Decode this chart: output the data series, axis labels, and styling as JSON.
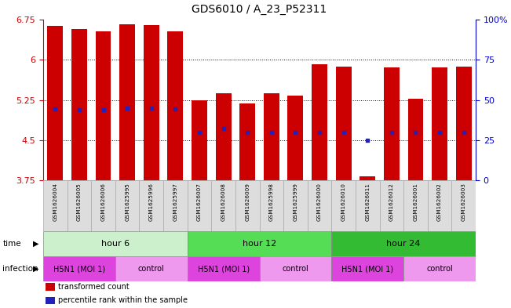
{
  "title": "GDS6010 / A_23_P52311",
  "samples": [
    "GSM1626004",
    "GSM1626005",
    "GSM1626006",
    "GSM1625995",
    "GSM1625996",
    "GSM1625997",
    "GSM1626007",
    "GSM1626008",
    "GSM1626009",
    "GSM1625998",
    "GSM1625999",
    "GSM1626000",
    "GSM1626010",
    "GSM1626011",
    "GSM1626012",
    "GSM1626001",
    "GSM1626002",
    "GSM1626003"
  ],
  "bar_tops": [
    6.63,
    6.57,
    6.53,
    6.66,
    6.65,
    6.53,
    5.25,
    5.38,
    5.18,
    5.37,
    5.33,
    5.91,
    5.87,
    3.82,
    5.86,
    5.27,
    5.86,
    5.87
  ],
  "bar_bottoms": [
    3.75,
    3.75,
    3.75,
    3.75,
    3.75,
    3.75,
    3.75,
    3.75,
    3.75,
    3.75,
    3.75,
    3.75,
    3.75,
    3.75,
    3.75,
    3.75,
    3.75,
    3.75
  ],
  "blue_marks_y": [
    5.08,
    5.07,
    5.07,
    5.1,
    5.09,
    5.08,
    4.65,
    4.72,
    4.65,
    4.65,
    4.65,
    4.65,
    4.65,
    4.5,
    4.65,
    4.65,
    4.65,
    4.65
  ],
  "ylim": [
    3.75,
    6.75
  ],
  "yticks": [
    3.75,
    4.5,
    5.25,
    6.0,
    6.75
  ],
  "ytick_labels": [
    "3.75",
    "4.5",
    "5.25",
    "6",
    "6.75"
  ],
  "y2ticks_pct": [
    0,
    25,
    50,
    75,
    100
  ],
  "y2tick_labels": [
    "0",
    "25",
    "50",
    "75",
    "100%"
  ],
  "bar_color": "#cc0000",
  "blue_color": "#2222bb",
  "bar_width": 0.65,
  "grid_yticks": [
    4.5,
    5.25,
    6.0
  ],
  "time_groups": [
    {
      "label": "hour 6",
      "start": 0,
      "end": 6,
      "color": "#ccf0cc"
    },
    {
      "label": "hour 12",
      "start": 6,
      "end": 12,
      "color": "#55dd55"
    },
    {
      "label": "hour 24",
      "start": 12,
      "end": 18,
      "color": "#33bb33"
    }
  ],
  "infection_groups": [
    {
      "label": "H5N1 (MOI 1)",
      "start": 0,
      "end": 3,
      "color": "#dd44dd"
    },
    {
      "label": "control",
      "start": 3,
      "end": 6,
      "color": "#ee99ee"
    },
    {
      "label": "H5N1 (MOI 1)",
      "start": 6,
      "end": 9,
      "color": "#dd44dd"
    },
    {
      "label": "control",
      "start": 9,
      "end": 12,
      "color": "#ee99ee"
    },
    {
      "label": "H5N1 (MOI 1)",
      "start": 12,
      "end": 15,
      "color": "#dd44dd"
    },
    {
      "label": "control",
      "start": 15,
      "end": 18,
      "color": "#ee99ee"
    }
  ],
  "bg_color": "#ffffff",
  "left_axis_color": "#cc0000",
  "right_axis_color": "#0000cc",
  "label_bg": "#dddddd",
  "label_edge": "#aaaaaa"
}
